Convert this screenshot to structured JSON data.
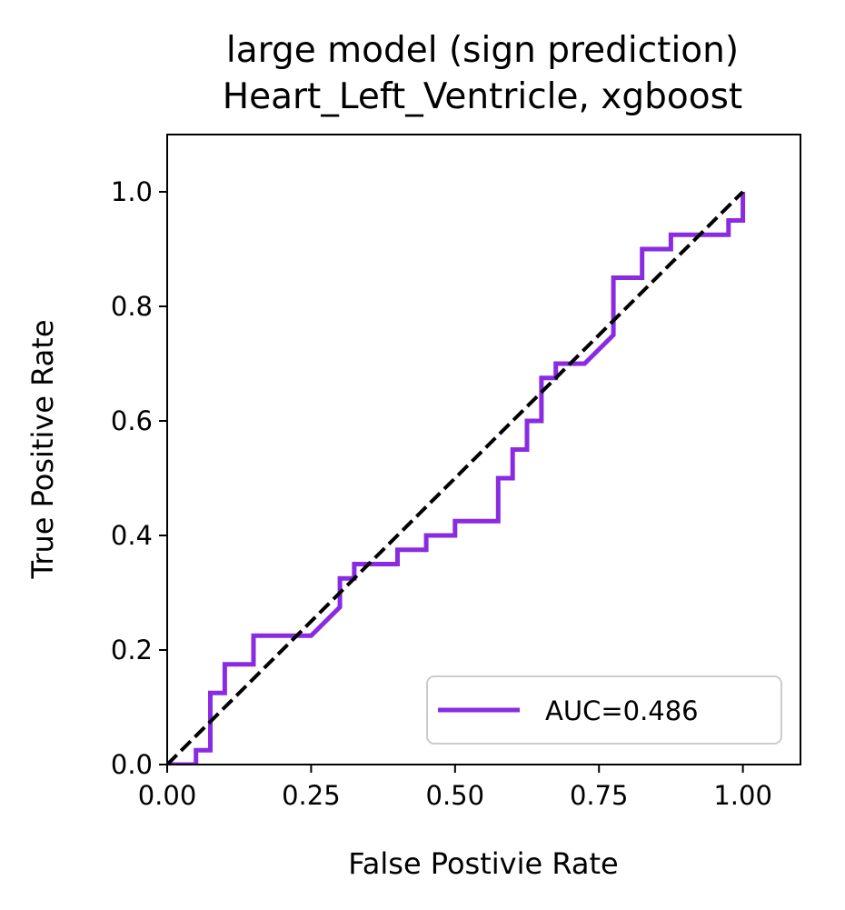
{
  "chart_data": {
    "type": "line",
    "title_line1": "large model (sign prediction)",
    "title_line2": "Heart_Left_Ventricle, xgboost",
    "xlabel": "False Postivie Rate",
    "ylabel": "True Positive Rate",
    "xlim": [
      0.0,
      1.1
    ],
    "ylim": [
      0.0,
      1.1
    ],
    "xticks": [
      0.0,
      0.25,
      0.5,
      0.75,
      1.0
    ],
    "xtick_labels": [
      "0.00",
      "0.25",
      "0.50",
      "0.75",
      "1.00"
    ],
    "yticks": [
      0.0,
      0.2,
      0.4,
      0.6,
      0.8,
      1.0
    ],
    "ytick_labels": [
      "0.0",
      "0.2",
      "0.4",
      "0.6",
      "0.8",
      "1.0"
    ],
    "grid": false,
    "legend_position": "lower-right",
    "series": [
      {
        "name": "AUC=0.486",
        "color": "#8a2be2",
        "style": "solid",
        "x": [
          0.0,
          0.05,
          0.05,
          0.075,
          0.075,
          0.1,
          0.1,
          0.15,
          0.15,
          0.25,
          0.3,
          0.3,
          0.325,
          0.325,
          0.4,
          0.4,
          0.45,
          0.45,
          0.5,
          0.5,
          0.575,
          0.575,
          0.6,
          0.6,
          0.625,
          0.625,
          0.65,
          0.65,
          0.675,
          0.675,
          0.725,
          0.775,
          0.775,
          0.825,
          0.825,
          0.875,
          0.875,
          0.975,
          0.975,
          1.0,
          1.0
        ],
        "y": [
          0.0,
          0.0,
          0.025,
          0.025,
          0.125,
          0.125,
          0.175,
          0.175,
          0.225,
          0.225,
          0.275,
          0.325,
          0.325,
          0.35,
          0.35,
          0.375,
          0.375,
          0.4,
          0.4,
          0.425,
          0.425,
          0.5,
          0.5,
          0.55,
          0.55,
          0.6,
          0.6,
          0.675,
          0.675,
          0.7,
          0.7,
          0.75,
          0.85,
          0.85,
          0.9,
          0.9,
          0.925,
          0.925,
          0.95,
          0.95,
          1.0
        ]
      },
      {
        "name": "",
        "color": "#000000",
        "style": "dashed",
        "x": [
          0.0,
          1.0
        ],
        "y": [
          0.0,
          1.0
        ]
      }
    ]
  }
}
